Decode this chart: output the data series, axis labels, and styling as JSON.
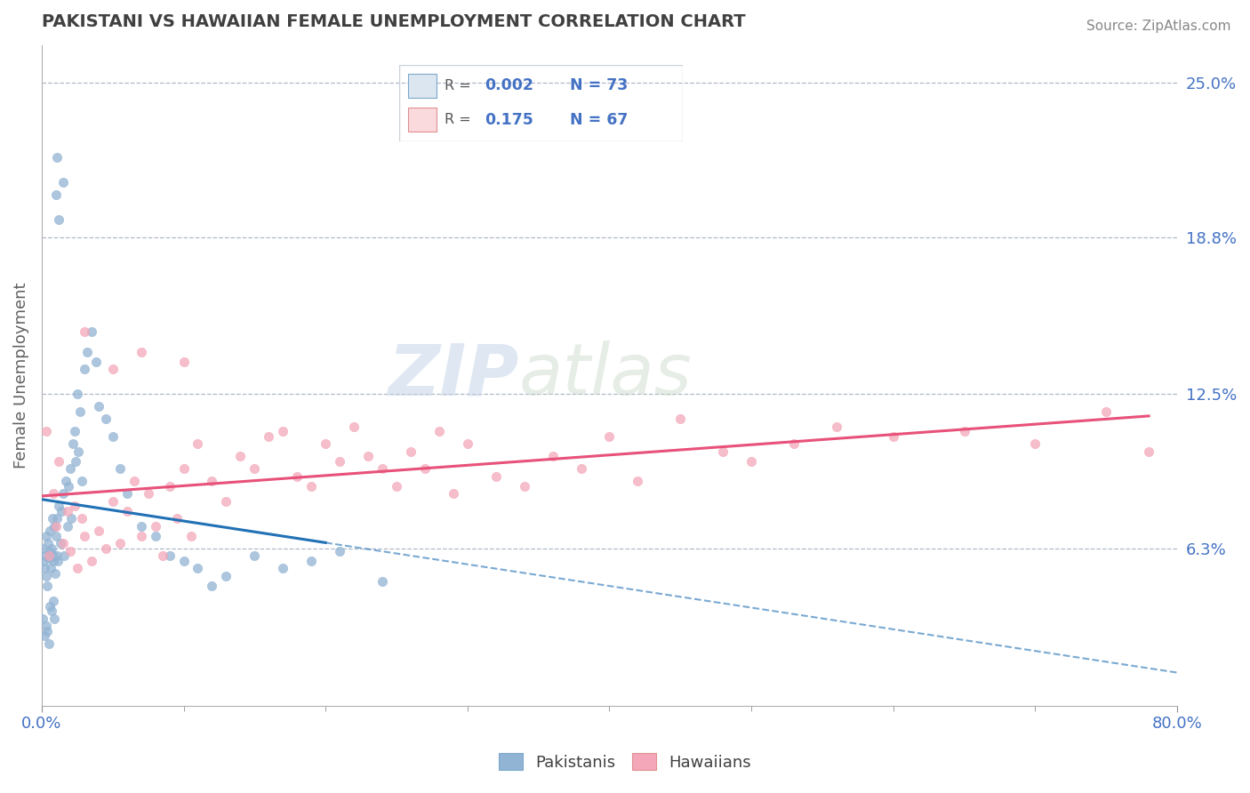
{
  "title": "PAKISTANI VS HAWAIIAN FEMALE UNEMPLOYMENT CORRELATION CHART",
  "source": "Source: ZipAtlas.com",
  "ylabel": "Female Unemployment",
  "right_yticks": [
    6.3,
    12.5,
    18.8,
    25.0
  ],
  "xlim": [
    0.0,
    80.0
  ],
  "ylim": [
    0.0,
    26.5
  ],
  "pakistanis_color": "#92b4d4",
  "hawaiians_color": "#f4a7b9",
  "trend_pakistanis_color": "#2171b5",
  "trend_hawaiians_color": "#e8517a",
  "pakistanis_x": [
    0.1,
    0.15,
    0.2,
    0.25,
    0.3,
    0.35,
    0.4,
    0.45,
    0.5,
    0.55,
    0.6,
    0.65,
    0.7,
    0.75,
    0.8,
    0.85,
    0.9,
    0.95,
    1.0,
    1.05,
    1.1,
    1.15,
    1.2,
    1.3,
    1.4,
    1.5,
    1.6,
    1.7,
    1.8,
    1.9,
    2.0,
    2.1,
    2.2,
    2.3,
    2.4,
    2.5,
    2.6,
    2.7,
    2.8,
    3.0,
    3.2,
    3.5,
    3.8,
    4.0,
    4.5,
    5.0,
    5.5,
    6.0,
    7.0,
    8.0,
    9.0,
    10.0,
    11.0,
    12.0,
    13.0,
    15.0,
    17.0,
    19.0,
    21.0,
    24.0,
    0.1,
    0.2,
    0.3,
    0.4,
    0.5,
    0.6,
    0.7,
    0.8,
    0.9,
    1.0,
    1.1,
    1.2,
    1.5
  ],
  "pakistanis_y": [
    6.3,
    5.8,
    5.5,
    6.0,
    6.8,
    5.2,
    4.8,
    6.5,
    5.9,
    6.2,
    7.0,
    5.5,
    6.3,
    7.5,
    5.8,
    6.0,
    7.2,
    5.3,
    6.8,
    6.0,
    7.5,
    5.8,
    8.0,
    6.5,
    7.8,
    8.5,
    6.0,
    9.0,
    7.2,
    8.8,
    9.5,
    7.5,
    10.5,
    11.0,
    9.8,
    12.5,
    10.2,
    11.8,
    9.0,
    13.5,
    14.2,
    15.0,
    13.8,
    12.0,
    11.5,
    10.8,
    9.5,
    8.5,
    7.2,
    6.8,
    6.0,
    5.8,
    5.5,
    4.8,
    5.2,
    6.0,
    5.5,
    5.8,
    6.2,
    5.0,
    3.5,
    2.8,
    3.2,
    3.0,
    2.5,
    4.0,
    3.8,
    4.2,
    3.5,
    20.5,
    22.0,
    19.5,
    21.0
  ],
  "hawaiians_x": [
    0.3,
    0.5,
    0.8,
    1.0,
    1.2,
    1.5,
    1.8,
    2.0,
    2.3,
    2.5,
    2.8,
    3.0,
    3.5,
    4.0,
    4.5,
    5.0,
    5.5,
    6.0,
    6.5,
    7.0,
    7.5,
    8.0,
    8.5,
    9.0,
    9.5,
    10.0,
    10.5,
    11.0,
    12.0,
    13.0,
    14.0,
    15.0,
    16.0,
    17.0,
    18.0,
    19.0,
    20.0,
    21.0,
    22.0,
    23.0,
    24.0,
    25.0,
    26.0,
    27.0,
    28.0,
    29.0,
    30.0,
    32.0,
    34.0,
    36.0,
    38.0,
    40.0,
    42.0,
    45.0,
    48.0,
    50.0,
    53.0,
    56.0,
    60.0,
    65.0,
    70.0,
    75.0,
    78.0,
    3.0,
    5.0,
    7.0,
    10.0
  ],
  "hawaiians_y": [
    11.0,
    6.0,
    8.5,
    7.2,
    9.8,
    6.5,
    7.8,
    6.2,
    8.0,
    5.5,
    7.5,
    6.8,
    5.8,
    7.0,
    6.3,
    8.2,
    6.5,
    7.8,
    9.0,
    6.8,
    8.5,
    7.2,
    6.0,
    8.8,
    7.5,
    9.5,
    6.8,
    10.5,
    9.0,
    8.2,
    10.0,
    9.5,
    10.8,
    11.0,
    9.2,
    8.8,
    10.5,
    9.8,
    11.2,
    10.0,
    9.5,
    8.8,
    10.2,
    9.5,
    11.0,
    8.5,
    10.5,
    9.2,
    8.8,
    10.0,
    9.5,
    10.8,
    9.0,
    11.5,
    10.2,
    9.8,
    10.5,
    11.2,
    10.8,
    11.0,
    10.5,
    11.8,
    10.2,
    15.0,
    13.5,
    14.2,
    13.8
  ],
  "watermark_zip": "ZIP",
  "watermark_atlas": "atlas",
  "background_color": "#ffffff",
  "grid_color": "#b0b8c8",
  "title_color": "#404040",
  "axis_label_color": "#606060",
  "tick_color": "#4472c4",
  "legend_box_color": "#dce6f0",
  "legend_box_color2": "#fadadd"
}
